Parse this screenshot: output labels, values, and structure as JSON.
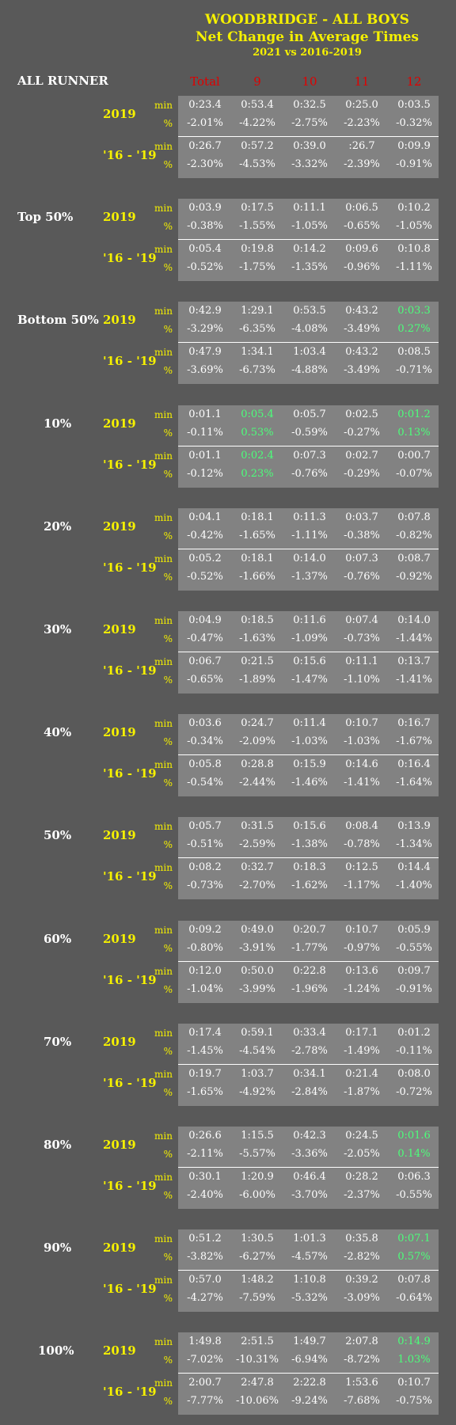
{
  "title": {
    "line1": "WOODBRIDGE - ALL BOYS",
    "line2": "Net Change in Average Times",
    "line3": "2021 vs 2016-2019"
  },
  "all_runner_label": "ALL RUNNER",
  "columns": [
    "Total",
    "9",
    "10",
    "11",
    "12"
  ],
  "row_labels": {
    "y2019": "2019",
    "y1619": "'16 - '19",
    "min": "min",
    "pct": "%"
  },
  "colors": {
    "background": "#595959",
    "panel": "#828282",
    "yellow": "#f5f000",
    "red": "#e00000",
    "green": "#4cff7a"
  },
  "groups": [
    {
      "label": "",
      "r2019_min": [
        "0:23.4",
        "0:53.4",
        "0:32.5",
        "0:25.0",
        "0:03.5"
      ],
      "r2019_pct": [
        "-2.01%",
        "-4.22%",
        "-2.75%",
        "-2.23%",
        "-0.32%"
      ],
      "r1619_min": [
        "0:26.7",
        "0:57.2",
        "0:39.0",
        ":26.7",
        "0:09.9"
      ],
      "r1619_pct": [
        "-2.30%",
        "-4.53%",
        "-3.32%",
        "-2.39%",
        "-0.91%"
      ]
    },
    {
      "label": "Top 50%",
      "r2019_min": [
        "0:03.9",
        "0:17.5",
        "0:11.1",
        "0:06.5",
        "0:10.2"
      ],
      "r2019_pct": [
        "-0.38%",
        "-1.55%",
        "-1.05%",
        "-0.65%",
        "-1.05%"
      ],
      "r1619_min": [
        "0:05.4",
        "0:19.8",
        "0:14.2",
        "0:09.6",
        "0:10.8"
      ],
      "r1619_pct": [
        "-0.52%",
        "-1.75%",
        "-1.35%",
        "-0.96%",
        "-1.11%"
      ]
    },
    {
      "label": "Bottom 50%",
      "r2019_min": [
        "0:42.9",
        "1:29.1",
        "0:53.5",
        "0:43.2",
        "0:03.3"
      ],
      "r2019_pct": [
        "-3.29%",
        "-6.35%",
        "-4.08%",
        "-3.49%",
        "0.27%"
      ],
      "r1619_min": [
        "0:47.9",
        "1:34.1",
        "1:03.4",
        "0:43.2",
        "0:08.5"
      ],
      "r1619_pct": [
        "-3.69%",
        "-6.73%",
        "-4.88%",
        "-3.49%",
        "-0.71%"
      ]
    },
    {
      "label": "10%",
      "r2019_min": [
        "0:01.1",
        "0:05.4",
        "0:05.7",
        "0:02.5",
        "0:01.2"
      ],
      "r2019_pct": [
        "-0.11%",
        "0.53%",
        "-0.59%",
        "-0.27%",
        "0.13%"
      ],
      "r1619_min": [
        "0:01.1",
        "0:02.4",
        "0:07.3",
        "0:02.7",
        "0:00.7"
      ],
      "r1619_pct": [
        "-0.12%",
        "0.23%",
        "-0.76%",
        "-0.29%",
        "-0.07%"
      ]
    },
    {
      "label": "20%",
      "r2019_min": [
        "0:04.1",
        "0:18.1",
        "0:11.3",
        "0:03.7",
        "0:07.8"
      ],
      "r2019_pct": [
        "-0.42%",
        "-1.65%",
        "-1.11%",
        "-0.38%",
        "-0.82%"
      ],
      "r1619_min": [
        "0:05.2",
        "0:18.1",
        "0:14.0",
        "0:07.3",
        "0:08.7"
      ],
      "r1619_pct": [
        "-0.52%",
        "-1.66%",
        "-1.37%",
        "-0.76%",
        "-0.92%"
      ]
    },
    {
      "label": "30%",
      "r2019_min": [
        "0:04.9",
        "0:18.5",
        "0:11.6",
        "0:07.4",
        "0:14.0"
      ],
      "r2019_pct": [
        "-0.47%",
        "-1.63%",
        "-1.09%",
        "-0.73%",
        "-1.44%"
      ],
      "r1619_min": [
        "0:06.7",
        "0:21.5",
        "0:15.6",
        "0:11.1",
        "0:13.7"
      ],
      "r1619_pct": [
        "-0.65%",
        "-1.89%",
        "-1.47%",
        "-1.10%",
        "-1.41%"
      ]
    },
    {
      "label": "40%",
      "r2019_min": [
        "0:03.6",
        "0:24.7",
        "0:11.4",
        "0:10.7",
        "0:16.7"
      ],
      "r2019_pct": [
        "-0.34%",
        "-2.09%",
        "-1.03%",
        "-1.03%",
        "-1.67%"
      ],
      "r1619_min": [
        "0:05.8",
        "0:28.8",
        "0:15.9",
        "0:14.6",
        "0:16.4"
      ],
      "r1619_pct": [
        "-0.54%",
        "-2.44%",
        "-1.46%",
        "-1.41%",
        "-1.64%"
      ]
    },
    {
      "label": "50%",
      "r2019_min": [
        "0:05.7",
        "0:31.5",
        "0:15.6",
        "0:08.4",
        "0:13.9"
      ],
      "r2019_pct": [
        "-0.51%",
        "-2.59%",
        "-1.38%",
        "-0.78%",
        "-1.34%"
      ],
      "r1619_min": [
        "0:08.2",
        "0:32.7",
        "0:18.3",
        "0:12.5",
        "0:14.4"
      ],
      "r1619_pct": [
        "-0.73%",
        "-2.70%",
        "-1.62%",
        "-1.17%",
        "-1.40%"
      ]
    },
    {
      "label": "60%",
      "r2019_min": [
        "0:09.2",
        "0:49.0",
        "0:20.7",
        "0:10.7",
        "0:05.9"
      ],
      "r2019_pct": [
        "-0.80%",
        "-3.91%",
        "-1.77%",
        "-0.97%",
        "-0.55%"
      ],
      "r1619_min": [
        "0:12.0",
        "0:50.0",
        "0:22.8",
        "0:13.6",
        "0:09.7"
      ],
      "r1619_pct": [
        "-1.04%",
        "-3.99%",
        "-1.96%",
        "-1.24%",
        "-0.91%"
      ]
    },
    {
      "label": "70%",
      "r2019_min": [
        "0:17.4",
        "0:59.1",
        "0:33.4",
        "0:17.1",
        "0:01.2"
      ],
      "r2019_pct": [
        "-1.45%",
        "-4.54%",
        "-2.78%",
        "-1.49%",
        "-0.11%"
      ],
      "r1619_min": [
        "0:19.7",
        "1:03.7",
        "0:34.1",
        "0:21.4",
        "0:08.0"
      ],
      "r1619_pct": [
        "-1.65%",
        "-4.92%",
        "-2.84%",
        "-1.87%",
        "-0.72%"
      ]
    },
    {
      "label": "80%",
      "r2019_min": [
        "0:26.6",
        "1:15.5",
        "0:42.3",
        "0:24.5",
        "0:01.6"
      ],
      "r2019_pct": [
        "-2.11%",
        "-5.57%",
        "-3.36%",
        "-2.05%",
        "0.14%"
      ],
      "r1619_min": [
        "0:30.1",
        "1:20.9",
        "0:46.4",
        "0:28.2",
        "0:06.3"
      ],
      "r1619_pct": [
        "-2.40%",
        "-6.00%",
        "-3.70%",
        "-2.37%",
        "-0.55%"
      ]
    },
    {
      "label": "90%",
      "r2019_min": [
        "0:51.2",
        "1:30.5",
        "1:01.3",
        "0:35.8",
        "0:07.1"
      ],
      "r2019_pct": [
        "-3.82%",
        "-6.27%",
        "-4.57%",
        "-2.82%",
        "0.57%"
      ],
      "r1619_min": [
        "0:57.0",
        "1:48.2",
        "1:10.8",
        "0:39.2",
        "0:07.8"
      ],
      "r1619_pct": [
        "-4.27%",
        "-7.59%",
        "-5.32%",
        "-3.09%",
        "-0.64%"
      ]
    },
    {
      "label": "100%",
      "r2019_min": [
        "1:49.8",
        "2:51.5",
        "1:49.7",
        "2:07.8",
        "0:14.9"
      ],
      "r2019_pct": [
        "-7.02%",
        "-10.31%",
        "-6.94%",
        "-8.72%",
        "1.03%"
      ],
      "r1619_min": [
        "2:00.7",
        "2:47.8",
        "2:22.8",
        "1:53.6",
        "0:10.7"
      ],
      "r1619_pct": [
        "-7.77%",
        "-10.06%",
        "-9.24%",
        "-7.68%",
        "-0.75%"
      ]
    }
  ]
}
